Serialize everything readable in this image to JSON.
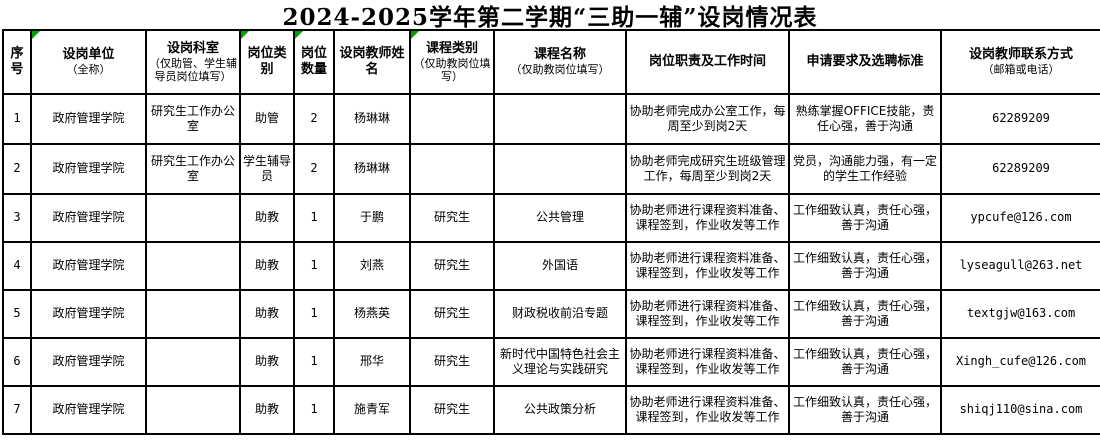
{
  "title": "2024-2025学年第二学期“三助一辅”设岗情况表",
  "colors": {
    "note_marker": "#00a000",
    "border": "#000000",
    "background": "#ffffff",
    "text": "#000000"
  },
  "table": {
    "columns": [
      {
        "label": "序号",
        "sub": "",
        "note_marker": false
      },
      {
        "label": "设岗单位",
        "sub": "（全称）",
        "note_marker": true
      },
      {
        "label": "设岗科室",
        "sub": "（仅助管、学生辅导员岗位填写）",
        "note_marker": false
      },
      {
        "label": "岗位类别",
        "sub": "",
        "note_marker": true
      },
      {
        "label": "岗位数量",
        "sub": "",
        "note_marker": true
      },
      {
        "label": "设岗教师姓名",
        "sub": "",
        "note_marker": false
      },
      {
        "label": "课程类别",
        "sub": "（仅助教岗位填写）",
        "note_marker": true
      },
      {
        "label": "课程名称",
        "sub": "（仅助教岗位填写）",
        "note_marker": false
      },
      {
        "label": "岗位职责及工作时间",
        "sub": "",
        "note_marker": false
      },
      {
        "label": "申请要求及选聘标准",
        "sub": "",
        "note_marker": false
      },
      {
        "label": "设岗教师联系方式",
        "sub": "（邮箱或电话）",
        "note_marker": false
      }
    ],
    "latin_columns": [
      0,
      4,
      10
    ],
    "rows": [
      [
        "1",
        "政府管理学院",
        "研究生工作办公室",
        "助管",
        "2",
        "杨琳琳",
        "",
        "",
        "协助老师完成办公室工作，每周至少到岗2天",
        "熟练掌握OFFICE技能，责任心强，善于沟通",
        "62289209"
      ],
      [
        "2",
        "政府管理学院",
        "研究生工作办公室",
        "学生辅导员",
        "2",
        "杨琳琳",
        "",
        "",
        "协助老师完成研究生班级管理工作，每周至少到岗2天",
        "党员，沟通能力强，有一定的学生工作经验",
        "62289209"
      ],
      [
        "3",
        "政府管理学院",
        "",
        "助教",
        "1",
        "于鹏",
        "研究生",
        "公共管理",
        "协助老师进行课程资料准备、课程签到，作业收发等工作",
        "工作细致认真，责任心强，善于沟通",
        "ypcufe@126.com"
      ],
      [
        "4",
        "政府管理学院",
        "",
        "助教",
        "1",
        "刘燕",
        "研究生",
        "外国语",
        "协助老师进行课程资料准备、课程签到，作业收发等工作",
        "工作细致认真，责任心强，善于沟通",
        "lyseagull@263.net"
      ],
      [
        "5",
        "政府管理学院",
        "",
        "助教",
        "1",
        "杨燕英",
        "研究生",
        "财政税收前沿专题",
        "协助老师进行课程资料准备、课程签到，作业收发等工作",
        "工作细致认真，责任心强，善于沟通",
        "textgjw@163.com"
      ],
      [
        "6",
        "政府管理学院",
        "",
        "助教",
        "1",
        "邢华",
        "研究生",
        "新时代中国特色社会主义理论与实践研究",
        "协助老师进行课程资料准备、课程签到，作业收发等工作",
        "工作细致认真，责任心强，善于沟通",
        "Xingh_cufe@126.com"
      ],
      [
        "7",
        "政府管理学院",
        "",
        "助教",
        "1",
        "施青军",
        "研究生",
        "公共政策分析",
        "协助老师进行课程资料准备、课程签到，作业收发等工作",
        "工作细致认真，责任心强，善于沟通",
        "shiqj110@sina.com"
      ]
    ]
  }
}
